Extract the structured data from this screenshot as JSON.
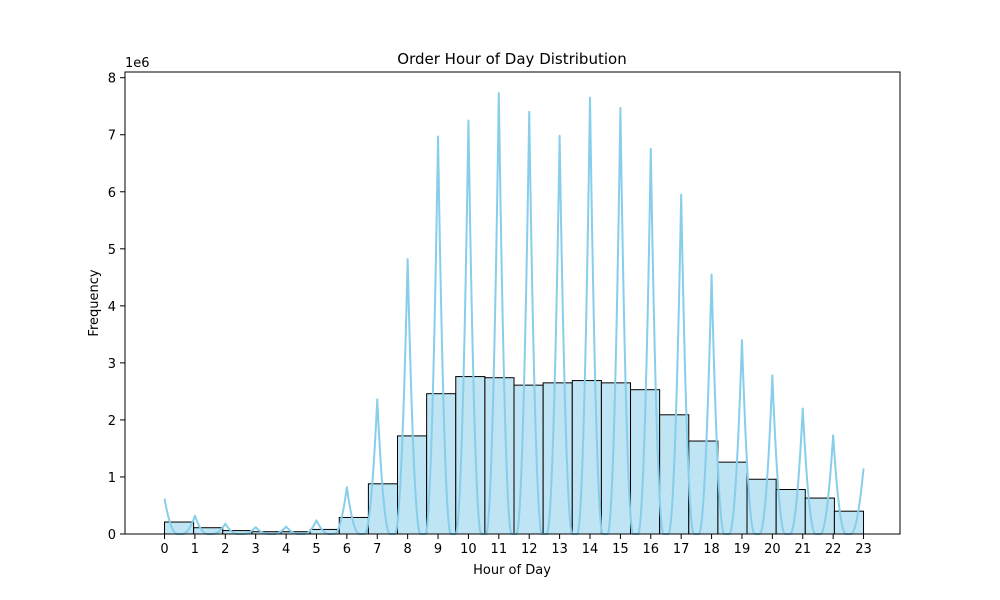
{
  "chart_data": {
    "type": "bar",
    "title": "Order Hour of Day Distribution",
    "xlabel": "Hour of Day",
    "ylabel": "Frequency",
    "y_scale_label": "1e6",
    "ylim": [
      0,
      8.1
    ],
    "xlim": [
      -1.3,
      24.2
    ],
    "y_ticks": [
      0,
      1,
      2,
      3,
      4,
      5,
      6,
      7,
      8
    ],
    "categories": [
      "0",
      "1",
      "2",
      "3",
      "4",
      "5",
      "6",
      "7",
      "8",
      "9",
      "10",
      "11",
      "12",
      "13",
      "14",
      "15",
      "16",
      "17",
      "18",
      "19",
      "20",
      "21",
      "22",
      "23"
    ],
    "values": [
      0.21,
      0.11,
      0.06,
      0.04,
      0.04,
      0.08,
      0.29,
      0.88,
      1.72,
      2.46,
      2.76,
      2.74,
      2.61,
      2.65,
      2.69,
      2.65,
      2.53,
      2.09,
      1.63,
      1.26,
      0.96,
      0.78,
      0.63,
      0.4
    ],
    "kde_peaks": [
      0.62,
      0.32,
      0.18,
      0.12,
      0.13,
      0.24,
      0.82,
      2.36,
      4.82,
      6.97,
      7.25,
      7.73,
      7.4,
      6.98,
      7.65,
      7.47,
      6.75,
      5.95,
      4.55,
      3.4,
      2.78,
      2.2,
      1.73,
      1.15
    ],
    "grid": false,
    "colors": {
      "bar_fill": "#bfe4f3",
      "bar_edge": "#000000",
      "kde_line": "#87ceeb"
    }
  }
}
